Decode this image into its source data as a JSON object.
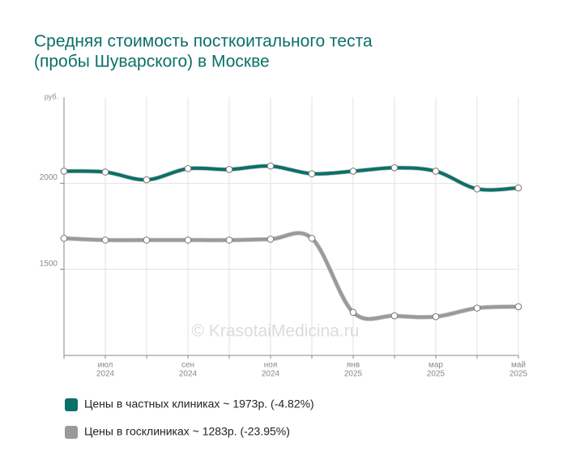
{
  "chart_data": {
    "type": "line",
    "title": [
      "Средняя стоимость посткоитального теста",
      "(пробы Шуварского) в Москве"
    ],
    "y_label": "руб.",
    "watermark": "© KrasotaiMedicina.ru",
    "categories": [
      null,
      [
        "июл",
        "2024"
      ],
      null,
      [
        "сен",
        "2024"
      ],
      null,
      [
        "ноя",
        "2024"
      ],
      null,
      [
        "янв",
        "2025"
      ],
      null,
      [
        "мар",
        "2025"
      ],
      null,
      [
        "май",
        "2025"
      ]
    ],
    "series": [
      {
        "name": "Цены в частных клиниках ~ 1973р. (-4.82%)",
        "color": "#0b7068",
        "values": [
          2070,
          2065,
          2020,
          2085,
          2080,
          2100,
          2055,
          2070,
          2090,
          2070,
          1967,
          1973
        ]
      },
      {
        "name": "Цены в госклиниках ~ 1283р. (-23.95%)",
        "color": "#9a9a9a",
        "values": [
          1680,
          1670,
          1670,
          1670,
          1670,
          1675,
          1680,
          1250,
          1230,
          1225,
          1275,
          1283
        ]
      }
    ],
    "ylim": [
      1000,
      2500
    ],
    "yticks": [
      1500,
      2000
    ],
    "grid": true
  }
}
